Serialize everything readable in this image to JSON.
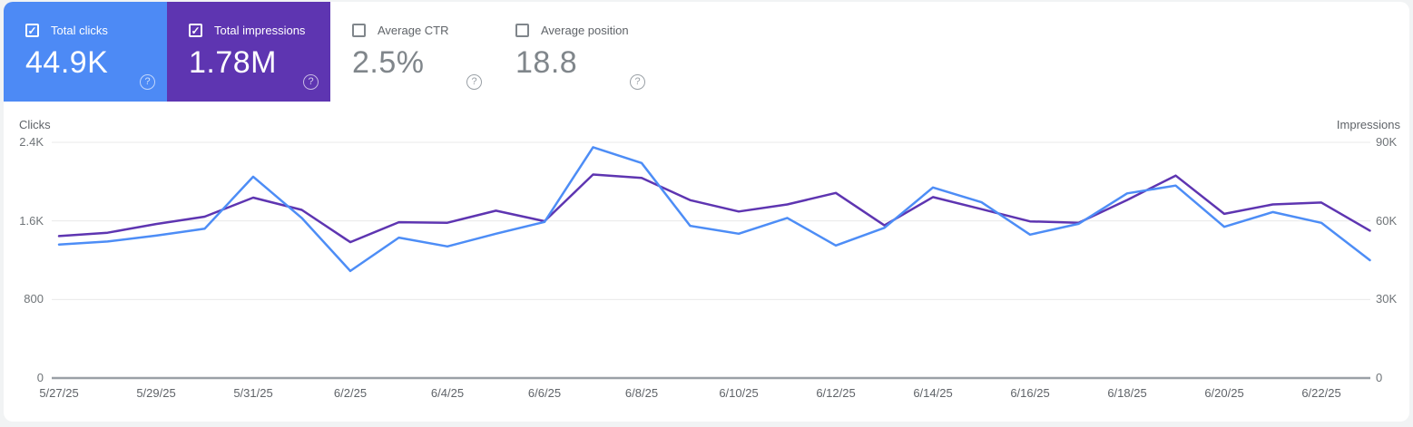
{
  "icons": {
    "help_glyph": "?",
    "check_glyph": "✓"
  },
  "cards": [
    {
      "label": "Total clicks",
      "value": "44.9K",
      "checked": true,
      "filled": true,
      "bg": "#4d8af5"
    },
    {
      "label": "Total impressions",
      "value": "1.78M",
      "checked": true,
      "filled": true,
      "bg": "#5e35b1"
    },
    {
      "label": "Average CTR",
      "value": "2.5%",
      "checked": false,
      "filled": false,
      "bg": "#ffffff"
    },
    {
      "label": "Average position",
      "value": "18.8",
      "checked": false,
      "filled": false,
      "bg": "#ffffff"
    }
  ],
  "chart": {
    "left_axis_title": "Clicks",
    "right_axis_title": "Impressions",
    "left_tick_labels": [
      "2.4K",
      "1.6K",
      "800",
      "0"
    ],
    "right_tick_labels": [
      "90K",
      "60K",
      "30K",
      "0"
    ],
    "x_tick_labels": [
      "5/27/25",
      "5/29/25",
      "5/31/25",
      "6/2/25",
      "6/4/25",
      "6/6/25",
      "6/8/25",
      "6/10/25",
      "6/12/25",
      "6/14/25",
      "6/16/25",
      "6/18/25",
      "6/20/25",
      "6/22/25"
    ],
    "gridline_color": "#e9e9e9",
    "axis_line_color": "#9aa0a6"
  },
  "chart_data": {
    "type": "line",
    "x": [
      "5/27/25",
      "5/28/25",
      "5/29/25",
      "5/30/25",
      "5/31/25",
      "6/1/25",
      "6/2/25",
      "6/3/25",
      "6/4/25",
      "6/5/25",
      "6/6/25",
      "6/7/25",
      "6/8/25",
      "6/9/25",
      "6/10/25",
      "6/11/25",
      "6/12/25",
      "6/13/25",
      "6/14/25",
      "6/15/25",
      "6/16/25",
      "6/17/25",
      "6/18/25",
      "6/19/25",
      "6/20/25",
      "6/21/25",
      "6/22/25",
      "6/23/25"
    ],
    "series": [
      {
        "name": "Clicks",
        "axis": "left",
        "color": "#4d8df6",
        "values": [
          1360,
          1390,
          1450,
          1520,
          2050,
          1630,
          1090,
          1430,
          1340,
          1470,
          1590,
          2350,
          2190,
          1550,
          1470,
          1630,
          1350,
          1530,
          1940,
          1790,
          1460,
          1570,
          1880,
          1960,
          1540,
          1690,
          1580,
          1200
        ]
      },
      {
        "name": "Impressions",
        "axis": "right",
        "color": "#5e35b1",
        "values": [
          54200,
          55500,
          58800,
          61600,
          68900,
          64200,
          51900,
          59500,
          59300,
          63900,
          59900,
          77700,
          76400,
          67900,
          63600,
          66300,
          70700,
          58300,
          69100,
          64500,
          59800,
          59300,
          68000,
          77300,
          62700,
          66300,
          67000,
          56300
        ]
      }
    ],
    "left_axis": {
      "title": "Clicks",
      "range": [
        0,
        2400
      ],
      "ticks": [
        0,
        800,
        1600,
        2400
      ]
    },
    "right_axis": {
      "title": "Impressions",
      "range": [
        0,
        90000
      ],
      "ticks": [
        0,
        30000,
        60000,
        90000
      ]
    },
    "grid": "horizontal",
    "legend": "none",
    "title": ""
  }
}
